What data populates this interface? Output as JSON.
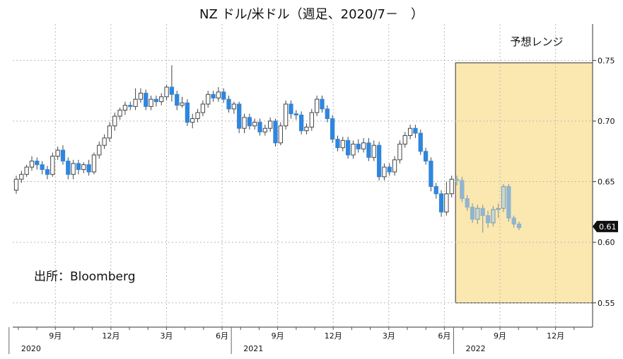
{
  "chart_data": {
    "type": "candlestick",
    "title": "NZ ドル/米ドル（週足、2020/7－　）",
    "source": "出所：Bloomberg",
    "ylim": [
      0.53,
      0.78
    ],
    "yticks": [
      {
        "value": 0.55,
        "label": "0.55"
      },
      {
        "value": 0.6,
        "label": "0.60"
      },
      {
        "value": 0.65,
        "label": "0.65"
      },
      {
        "value": 0.7,
        "label": "0.70"
      },
      {
        "value": 0.75,
        "label": "0.75"
      }
    ],
    "x_month_ticks": [
      {
        "month_index": 2,
        "label": "9月"
      },
      {
        "month_index": 5,
        "label": "12月"
      },
      {
        "month_index": 8,
        "label": "3月"
      },
      {
        "month_index": 11,
        "label": "6月"
      },
      {
        "month_index": 14,
        "label": "9月"
      },
      {
        "month_index": 17,
        "label": "12月"
      },
      {
        "month_index": 20,
        "label": "3月"
      },
      {
        "month_index": 23,
        "label": "6月"
      },
      {
        "month_index": 26,
        "label": "9月"
      },
      {
        "month_index": 29,
        "label": "12月"
      }
    ],
    "x_year_labels": [
      {
        "month_index": 0,
        "label": "2020"
      },
      {
        "month_index": 12,
        "label": "2021"
      },
      {
        "month_index": 24,
        "label": "2022"
      }
    ],
    "x_range_months": [
      -0.3,
      31.0
    ],
    "last_value": {
      "value": 0.613,
      "label": "0.61"
    },
    "forecast_range": {
      "label": "予想レンジ",
      "start_month": 23.6,
      "end_month": 31.5,
      "low": 0.55,
      "high": 0.748
    },
    "colors": {
      "up": "#ffffff",
      "down": "#2f86dd",
      "forecast_up": "#c9d8d2",
      "forecast_down": "#8fb5cf",
      "forecast_fill": "#fbe7b0",
      "forecast_border": "#333333"
    },
    "candles": [
      [
        0.643,
        0.652,
        0.64,
        0.655
      ],
      [
        0.652,
        0.656,
        0.649,
        0.659
      ],
      [
        0.656,
        0.662,
        0.654,
        0.664
      ],
      [
        0.662,
        0.667,
        0.659,
        0.671
      ],
      [
        0.667,
        0.664,
        0.66,
        0.67
      ],
      [
        0.664,
        0.66,
        0.656,
        0.667
      ],
      [
        0.66,
        0.656,
        0.652,
        0.663
      ],
      [
        0.656,
        0.671,
        0.654,
        0.674
      ],
      [
        0.671,
        0.676,
        0.668,
        0.679
      ],
      [
        0.676,
        0.667,
        0.664,
        0.68
      ],
      [
        0.667,
        0.656,
        0.652,
        0.67
      ],
      [
        0.656,
        0.665,
        0.652,
        0.668
      ],
      [
        0.665,
        0.66,
        0.656,
        0.668
      ],
      [
        0.66,
        0.664,
        0.657,
        0.666
      ],
      [
        0.664,
        0.658,
        0.655,
        0.668
      ],
      [
        0.658,
        0.672,
        0.656,
        0.674
      ],
      [
        0.672,
        0.68,
        0.669,
        0.683
      ],
      [
        0.68,
        0.686,
        0.677,
        0.689
      ],
      [
        0.686,
        0.696,
        0.683,
        0.699
      ],
      [
        0.696,
        0.704,
        0.692,
        0.707
      ],
      [
        0.704,
        0.709,
        0.701,
        0.711
      ],
      [
        0.709,
        0.713,
        0.705,
        0.716
      ],
      [
        0.713,
        0.712,
        0.709,
        0.716
      ],
      [
        0.712,
        0.718,
        0.709,
        0.727
      ],
      [
        0.718,
        0.723,
        0.715,
        0.727
      ],
      [
        0.723,
        0.712,
        0.709,
        0.726
      ],
      [
        0.712,
        0.718,
        0.709,
        0.721
      ],
      [
        0.718,
        0.716,
        0.712,
        0.721
      ],
      [
        0.716,
        0.72,
        0.713,
        0.723
      ],
      [
        0.72,
        0.728,
        0.717,
        0.73
      ],
      [
        0.728,
        0.722,
        0.716,
        0.746
      ],
      [
        0.722,
        0.713,
        0.709,
        0.725
      ],
      [
        0.713,
        0.715,
        0.711,
        0.72
      ],
      [
        0.715,
        0.699,
        0.696,
        0.718
      ],
      [
        0.699,
        0.702,
        0.694,
        0.706
      ],
      [
        0.702,
        0.707,
        0.699,
        0.71
      ],
      [
        0.707,
        0.714,
        0.704,
        0.717
      ],
      [
        0.714,
        0.722,
        0.711,
        0.725
      ],
      [
        0.722,
        0.719,
        0.716,
        0.725
      ],
      [
        0.719,
        0.724,
        0.716,
        0.728
      ],
      [
        0.724,
        0.718,
        0.715,
        0.727
      ],
      [
        0.718,
        0.71,
        0.707,
        0.721
      ],
      [
        0.71,
        0.714,
        0.706,
        0.716
      ],
      [
        0.714,
        0.694,
        0.69,
        0.716
      ],
      [
        0.694,
        0.703,
        0.69,
        0.706
      ],
      [
        0.703,
        0.696,
        0.693,
        0.706
      ],
      [
        0.696,
        0.699,
        0.693,
        0.702
      ],
      [
        0.699,
        0.691,
        0.688,
        0.702
      ],
      [
        0.691,
        0.694,
        0.688,
        0.697
      ],
      [
        0.694,
        0.7,
        0.691,
        0.703
      ],
      [
        0.7,
        0.682,
        0.679,
        0.702
      ],
      [
        0.682,
        0.696,
        0.68,
        0.699
      ],
      [
        0.696,
        0.714,
        0.693,
        0.717
      ],
      [
        0.714,
        0.706,
        0.702,
        0.717
      ],
      [
        0.706,
        0.705,
        0.701,
        0.709
      ],
      [
        0.705,
        0.692,
        0.689,
        0.708
      ],
      [
        0.692,
        0.695,
        0.689,
        0.698
      ],
      [
        0.695,
        0.707,
        0.692,
        0.71
      ],
      [
        0.707,
        0.718,
        0.704,
        0.721
      ],
      [
        0.718,
        0.71,
        0.707,
        0.721
      ],
      [
        0.71,
        0.702,
        0.699,
        0.713
      ],
      [
        0.702,
        0.685,
        0.682,
        0.705
      ],
      [
        0.685,
        0.678,
        0.675,
        0.688
      ],
      [
        0.678,
        0.684,
        0.675,
        0.687
      ],
      [
        0.684,
        0.672,
        0.669,
        0.687
      ],
      [
        0.672,
        0.681,
        0.669,
        0.684
      ],
      [
        0.681,
        0.677,
        0.674,
        0.685
      ],
      [
        0.677,
        0.682,
        0.674,
        0.686
      ],
      [
        0.682,
        0.67,
        0.667,
        0.686
      ],
      [
        0.67,
        0.68,
        0.667,
        0.684
      ],
      [
        0.68,
        0.654,
        0.651,
        0.683
      ],
      [
        0.654,
        0.662,
        0.651,
        0.665
      ],
      [
        0.662,
        0.658,
        0.655,
        0.665
      ],
      [
        0.658,
        0.668,
        0.655,
        0.671
      ],
      [
        0.668,
        0.681,
        0.665,
        0.684
      ],
      [
        0.681,
        0.688,
        0.678,
        0.691
      ],
      [
        0.688,
        0.694,
        0.685,
        0.697
      ],
      [
        0.694,
        0.69,
        0.686,
        0.697
      ],
      [
        0.69,
        0.675,
        0.672,
        0.693
      ],
      [
        0.675,
        0.667,
        0.664,
        0.678
      ],
      [
        0.667,
        0.646,
        0.642,
        0.67
      ],
      [
        0.646,
        0.64,
        0.636,
        0.649
      ],
      [
        0.64,
        0.625,
        0.621,
        0.643
      ],
      [
        0.625,
        0.64,
        0.622,
        0.65
      ],
      [
        0.64,
        0.652,
        0.637,
        0.655
      ],
      [
        0.652,
        0.651,
        0.647,
        0.655
      ],
      [
        0.651,
        0.636,
        0.633,
        0.654
      ],
      [
        0.636,
        0.629,
        0.626,
        0.639
      ],
      [
        0.629,
        0.619,
        0.616,
        0.632
      ],
      [
        0.619,
        0.628,
        0.615,
        0.631
      ],
      [
        0.628,
        0.622,
        0.608,
        0.631
      ],
      [
        0.622,
        0.616,
        0.612,
        0.626
      ],
      [
        0.616,
        0.627,
        0.613,
        0.63
      ],
      [
        0.627,
        0.628,
        0.62,
        0.632
      ],
      [
        0.628,
        0.646,
        0.625,
        0.648
      ],
      [
        0.646,
        0.62,
        0.617,
        0.648
      ],
      [
        0.62,
        0.615,
        0.612,
        0.622
      ],
      [
        0.615,
        0.612,
        0.61,
        0.617
      ]
    ]
  }
}
